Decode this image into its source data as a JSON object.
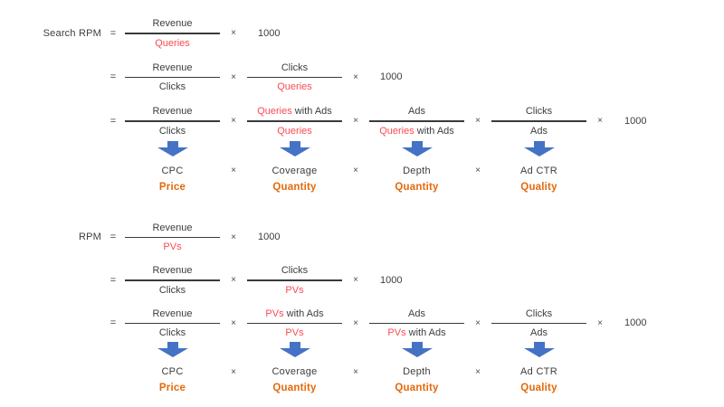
{
  "colors": {
    "text": "#3d3d3d",
    "highlight_red": "#fa4a53",
    "arrow_blue": "#4472c4",
    "category_orange": "#e4690b",
    "fraction_bar": "#3a3a3a",
    "background": "#ffffff"
  },
  "multiply_sign": "×",
  "scale_factor": "1000",
  "groups": [
    {
      "id": "search-rpm",
      "lhs_label": "Search RPM",
      "equals_sign": "=",
      "rows": [
        {
          "fractions": [
            {
              "num": [
                {
                  "text": "Revenue"
                }
              ],
              "den": [
                {
                  "text": "Queries",
                  "highlight": true
                }
              ]
            }
          ]
        },
        {
          "fractions": [
            {
              "num": [
                {
                  "text": "Revenue"
                }
              ],
              "den": [
                {
                  "text": "Clicks"
                }
              ]
            },
            {
              "num": [
                {
                  "text": "Clicks"
                }
              ],
              "den": [
                {
                  "text": "Queries",
                  "highlight": true
                }
              ]
            }
          ]
        },
        {
          "fractions": [
            {
              "num": [
                {
                  "text": "Revenue"
                }
              ],
              "den": [
                {
                  "text": "Clicks"
                }
              ]
            },
            {
              "num": [
                {
                  "text": "Queries",
                  "highlight": true
                },
                {
                  "text": " with Ads"
                }
              ],
              "den": [
                {
                  "text": "Queries",
                  "highlight": true
                }
              ]
            },
            {
              "num": [
                {
                  "text": "Ads"
                }
              ],
              "den": [
                {
                  "text": "Queries",
                  "highlight": true
                },
                {
                  "text": " with Ads"
                }
              ]
            },
            {
              "num": [
                {
                  "text": "Clicks"
                }
              ],
              "den": [
                {
                  "text": "Ads"
                }
              ]
            }
          ]
        }
      ],
      "metrics": [
        "CPC",
        "Coverage",
        "Depth",
        "Ad CTR"
      ],
      "categories": [
        "Price",
        "Quantity",
        "Quantity",
        "Quality"
      ]
    },
    {
      "id": "rpm",
      "lhs_label": "RPM",
      "equals_sign": "=",
      "rows": [
        {
          "fractions": [
            {
              "num": [
                {
                  "text": "Revenue"
                }
              ],
              "den": [
                {
                  "text": "PVs",
                  "highlight": true
                }
              ]
            }
          ]
        },
        {
          "fractions": [
            {
              "num": [
                {
                  "text": "Revenue"
                }
              ],
              "den": [
                {
                  "text": "Clicks"
                }
              ]
            },
            {
              "num": [
                {
                  "text": "Clicks"
                }
              ],
              "den": [
                {
                  "text": "PVs",
                  "highlight": true
                }
              ]
            }
          ]
        },
        {
          "fractions": [
            {
              "num": [
                {
                  "text": "Revenue"
                }
              ],
              "den": [
                {
                  "text": "Clicks"
                }
              ]
            },
            {
              "num": [
                {
                  "text": "PVs",
                  "highlight": true
                },
                {
                  "text": " with Ads"
                }
              ],
              "den": [
                {
                  "text": "PVs",
                  "highlight": true
                }
              ]
            },
            {
              "num": [
                {
                  "text": "Ads"
                }
              ],
              "den": [
                {
                  "text": "PVs",
                  "highlight": true
                },
                {
                  "text": " with Ads"
                }
              ]
            },
            {
              "num": [
                {
                  "text": "Clicks"
                }
              ],
              "den": [
                {
                  "text": "Ads"
                }
              ]
            }
          ]
        }
      ],
      "metrics": [
        "CPC",
        "Coverage",
        "Depth",
        "Ad CTR"
      ],
      "categories": [
        "Price",
        "Quantity",
        "Quantity",
        "Quality"
      ]
    }
  ]
}
